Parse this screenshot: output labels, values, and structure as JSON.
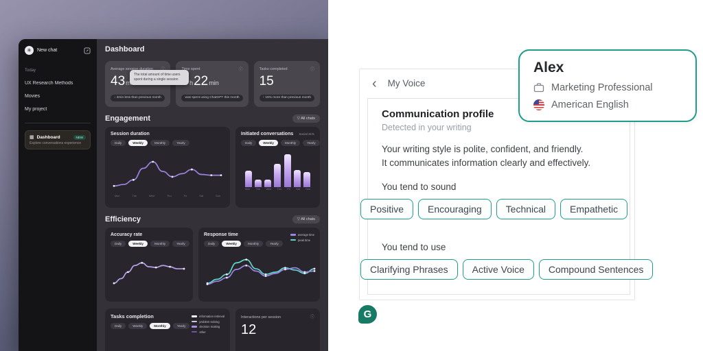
{
  "icons": {
    "info": "ⓘ",
    "back": "‹",
    "funnel": "▽",
    "logo_seed": "✳",
    "dash_grid": "▦"
  },
  "colors": {
    "teal_border": "#1f9d89",
    "chip_bg": "#fbfefd",
    "logo_green": "#177a64",
    "purple_line": "#9b84e0",
    "teal_line": "#5fd7c8",
    "bar_top": "#f0e6ff",
    "bar_bottom": "#9a77d6"
  },
  "left_photo": {
    "sidebar": {
      "new_chat": "New chat",
      "section_today": "Today",
      "items": [
        "UX Research Methods",
        "Movies",
        "My project"
      ],
      "dashboard_item": {
        "label": "Dashboard",
        "badge": "NEW",
        "subtitle": "Explore conversations experience"
      }
    },
    "main": {
      "title": "Dashboard",
      "stats": [
        {
          "label": "Average session duration",
          "parts": [
            {
              "t": "43",
              "k": "b"
            },
            {
              "t": "min",
              "k": "s"
            }
          ],
          "footer": "↓ 3min less than previous month",
          "tooltip": "The total amount of time users spent during a single session"
        },
        {
          "label": "Time spent",
          "parts": [
            {
              "t": "3",
              "k": "b"
            },
            {
              "t": "h",
              "k": "s"
            },
            {
              "t": "22",
              "k": "b"
            },
            {
              "t": "min",
              "k": "s"
            }
          ],
          "footer": "was spent using ChatGPT this month"
        },
        {
          "label": "Tasks completed",
          "parts": [
            {
              "t": "15",
              "k": "b"
            }
          ],
          "footer": "↑ 15% more than previous month"
        }
      ],
      "filter_label": "All chats",
      "engagement": {
        "title": "Engagement",
        "session_duration": {
          "title": "Session duration",
          "tabs": {
            "options": [
              "Daily",
              "Weekly",
              "Monthly",
              "Yearly"
            ],
            "active": "Weekly"
          },
          "series": [
            {
              "color": "#9b84e0",
              "dots": true,
              "values": [
                12,
                16,
                28,
                58,
                75,
                50,
                36,
                44,
                55,
                42,
                40,
                40
              ]
            }
          ],
          "x": [
            "Mon",
            "Tue",
            "Wed",
            "Thu",
            "Fri",
            "Sat",
            "Sun"
          ]
        },
        "initiated": {
          "title": "Initiated conversations",
          "note": "Social 31%",
          "tabs": {
            "options": [
              "Daily",
              "Weekly",
              "Monthly",
              "Yearly"
            ],
            "active": "Weekly"
          },
          "bars": [
            42,
            20,
            20,
            60,
            85,
            44,
            40
          ],
          "x": [
            "Mon",
            "Tue",
            "Wed",
            "Thu",
            "Fri",
            "Sat",
            "Sun"
          ]
        }
      },
      "efficiency": {
        "title": "Efficiency",
        "accuracy": {
          "title": "Accuracy rate",
          "tabs": {
            "options": [
              "Daily",
              "Weekly",
              "Monthly",
              "Yearly"
            ],
            "active": "Weekly"
          },
          "series": [
            {
              "color": "#b6a2ec",
              "dots": true,
              "values": [
                8,
                22,
                42,
                62,
                70,
                58,
                56,
                62,
                58,
                52,
                52
              ]
            }
          ]
        },
        "response": {
          "title": "Response time",
          "tabs": {
            "options": [
              "Daily",
              "Weekly",
              "Monthly",
              "Yearly"
            ],
            "active": "Weekly"
          },
          "legend": [
            {
              "label": "average time",
              "color": "#9b84e0"
            },
            {
              "label": "peak time",
              "color": "#5fd7c8"
            }
          ],
          "series": [
            {
              "color": "#5fd7c8",
              "dots": true,
              "values": [
                8,
                20,
                35,
                70,
                80,
                52,
                35,
                42,
                55,
                48,
                38,
                52
              ]
            },
            {
              "color": "#9b84e0",
              "dots": true,
              "values": [
                5,
                14,
                25,
                50,
                62,
                45,
                30,
                38,
                50,
                55,
                42,
                45
              ]
            }
          ]
        }
      },
      "bottom": {
        "tasks": {
          "title": "Tasks completion",
          "tabs": {
            "options": [
              "Daily",
              "Weekly",
              "Monthly",
              "Yearly"
            ],
            "active": "Monthly"
          },
          "legend": [
            {
              "label": "information retrieval",
              "color": "#f5f4f7"
            },
            {
              "label": "problem solving",
              "color": "#cfcbd8"
            },
            {
              "label": "decision making",
              "color": "#a98fdf"
            },
            {
              "label": "other",
              "color": "#6f57a8"
            }
          ]
        },
        "interactions": {
          "label": "Interactions per session",
          "value": "12"
        }
      }
    }
  },
  "voice_panel": {
    "title": "My Voice",
    "profile": {
      "heading": "Communication profile",
      "subheading": "Detected in your writing",
      "desc_line1": "Your writing style is polite, confident, and friendly.",
      "desc_line2": "It communicates information clearly and effectively.",
      "sound_label": "You tend to sound",
      "sound_chips": [
        "Positive",
        "Encouraging",
        "Technical",
        "Empathetic"
      ],
      "use_label": "You tend to use",
      "use_chips": [
        "Clarifying Phrases",
        "Active Voice",
        "Compound Sentences"
      ]
    }
  },
  "alex_card": {
    "name": "Alex",
    "occupation": "Marketing Professional",
    "language": "American English"
  },
  "logo": {
    "letter": "G"
  }
}
